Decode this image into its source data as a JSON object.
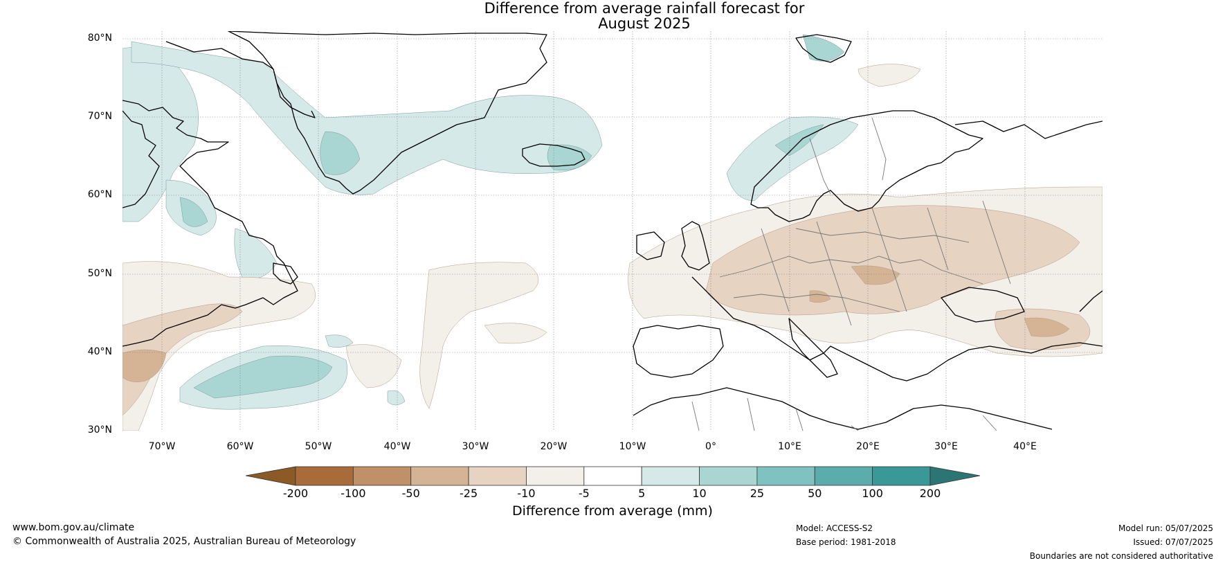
{
  "title_line1": "Difference from average rainfall forecast for",
  "title_line2": "August 2025",
  "lat_labels": [
    "80°N",
    "70°N",
    "60°N",
    "50°N",
    "40°N",
    "30°N"
  ],
  "lon_labels": [
    "70°W",
    "60°W",
    "50°W",
    "40°W",
    "30°W",
    "20°W",
    "10°W",
    "0°",
    "10°E",
    "20°E",
    "30°E",
    "40°E"
  ],
  "colorbar": {
    "ticks": [
      "-200",
      "-100",
      "-50",
      "-25",
      "-10",
      "-5",
      "5",
      "10",
      "25",
      "50",
      "100",
      "200"
    ],
    "colors": [
      "#8c5a26",
      "#a86c3a",
      "#c09068",
      "#d4b494",
      "#e6d3c2",
      "#f3efe9",
      "#ffffff",
      "#d4e9e8",
      "#a9d5d3",
      "#80c2bf",
      "#5cacab",
      "#3a9896",
      "#2b7674"
    ],
    "label": "Difference from average (mm)"
  },
  "footer": {
    "website": "www.bom.gov.au/climate",
    "copyright": "© Commonwealth of Australia 2025, Australian Bureau of Meteorology",
    "model": "Model: ACCESS-S2",
    "base_period": "Base period: 1981-2018",
    "model_run": "Model run: 05/07/2025",
    "issued": "Issued: 07/07/2025",
    "disclaimer": "Boundaries are not considered authoritative"
  }
}
